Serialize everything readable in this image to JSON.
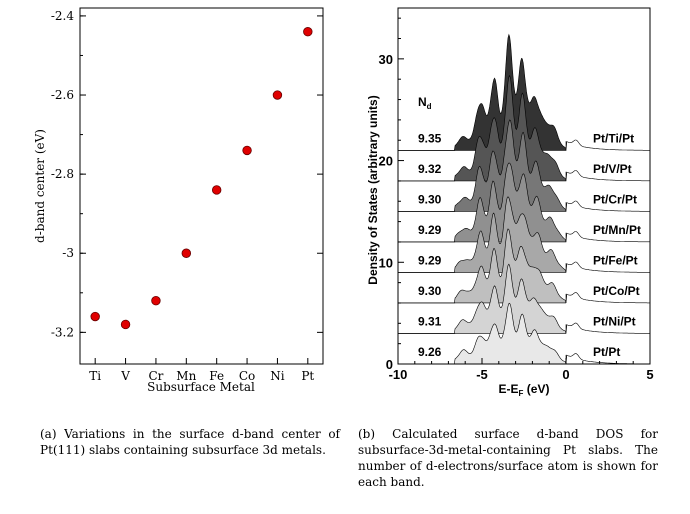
{
  "chart_data": [
    {
      "type": "scatter",
      "title": "",
      "xlabel": "Subsurface Metal",
      "ylabel": "d-band center (eV)",
      "categories": [
        "Ti",
        "V",
        "Cr",
        "Mn",
        "Fe",
        "Co",
        "Ni",
        "Pt"
      ],
      "values": [
        -3.16,
        -3.18,
        -3.12,
        -3.0,
        -2.84,
        -2.74,
        -2.6,
        -2.44
      ],
      "ylim": [
        -3.28,
        -2.38
      ],
      "yticks": [
        "-2.4",
        "-2.6",
        "-2.8",
        "-3",
        "-3.2"
      ],
      "marker_color": "#e00000",
      "grid": false
    },
    {
      "type": "area",
      "title": "",
      "xlabel": "E-E",
      "xlabel_sub": "F",
      "xlabel_unit": " (eV)",
      "ylabel": "Density of States (arbitrary units)",
      "xlim": [
        -10,
        5
      ],
      "ylim": [
        0,
        35
      ],
      "xticks": [
        "-10",
        "-5",
        "0",
        "5"
      ],
      "yticks": [
        "0",
        "10",
        "20",
        "30"
      ],
      "nd_header": "N",
      "nd_header_sub": "d",
      "grid": false,
      "series": [
        {
          "name": "Pt/Pt",
          "nd": "9.26",
          "offset": 0,
          "color": "#e8e8e8"
        },
        {
          "name": "Pt/Ni/Pt",
          "nd": "9.31",
          "offset": 3,
          "color": "#d4d4d4"
        },
        {
          "name": "Pt/Co/Pt",
          "nd": "9.30",
          "offset": 6,
          "color": "#bfbfbf"
        },
        {
          "name": "Pt/Fe/Pt",
          "nd": "9.29",
          "offset": 9,
          "color": "#a8a8a8"
        },
        {
          "name": "Pt/Mn/Pt",
          "nd": "9.29",
          "offset": 12,
          "color": "#909090"
        },
        {
          "name": "Pt/Cr/Pt",
          "nd": "9.30",
          "offset": 15,
          "color": "#777777"
        },
        {
          "name": "Pt/V/Pt",
          "nd": "9.32",
          "offset": 18,
          "color": "#555555"
        },
        {
          "name": "Pt/Ti/Pt",
          "nd": "9.35",
          "offset": 21,
          "color": "#333333"
        }
      ]
    }
  ],
  "captions": {
    "a": "(a) Variations in the surface d-band center of Pt(111) slabs containing subsurface 3d metals.",
    "b": "(b) Calculated surface d-band DOS for subsurface-3d-metal-containing Pt slabs. The number of d-electrons/surface atom is shown for each band."
  }
}
